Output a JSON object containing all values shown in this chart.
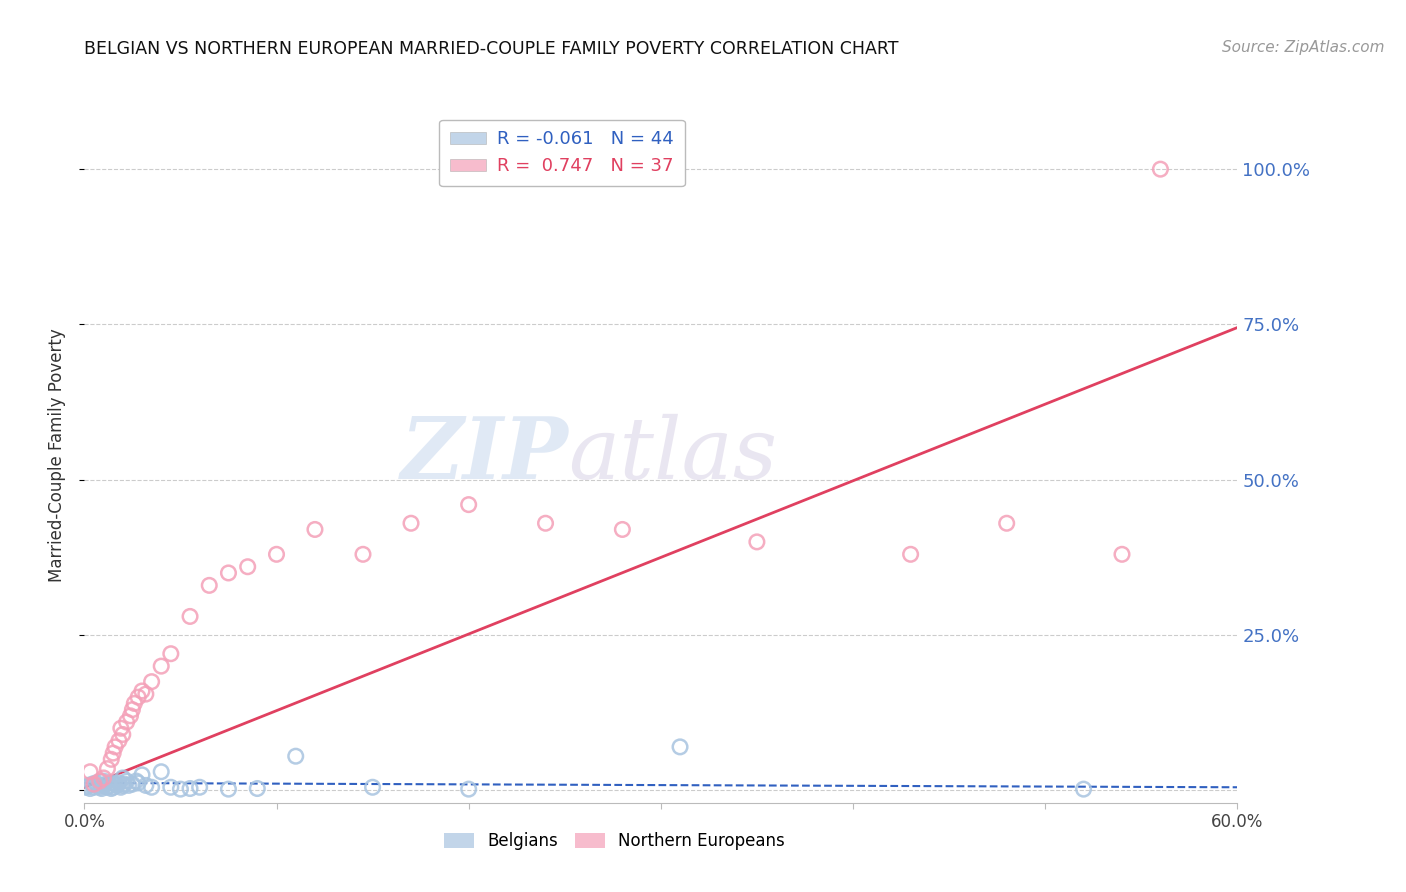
{
  "title": "BELGIAN VS NORTHERN EUROPEAN MARRIED-COUPLE FAMILY POVERTY CORRELATION CHART",
  "source": "Source: ZipAtlas.com",
  "ylabel": "Married-Couple Family Poverty",
  "xlim": [
    0.0,
    0.6
  ],
  "ylim": [
    -0.02,
    1.1
  ],
  "yticks": [
    0.0,
    0.25,
    0.5,
    0.75,
    1.0
  ],
  "ytick_labels": [
    "",
    "25.0%",
    "50.0%",
    "75.0%",
    "100.0%"
  ],
  "xticks": [
    0.0,
    0.1,
    0.2,
    0.3,
    0.4,
    0.5,
    0.6
  ],
  "xtick_labels": [
    "0.0%",
    "",
    "",
    "",
    "",
    "",
    "60.0%"
  ],
  "belgian_color": "#a8c4e0",
  "northern_color": "#f4a0b8",
  "trendline_belgian_color": "#3060c0",
  "trendline_northern_color": "#e04060",
  "belgian_R": -0.061,
  "belgian_N": 44,
  "northern_R": 0.747,
  "northern_N": 37,
  "background_color": "#ffffff",
  "grid_color": "#cccccc",
  "watermark_zip": "ZIP",
  "watermark_atlas": "atlas",
  "ytick_color": "#4472C4",
  "belgians_x": [
    0.001,
    0.002,
    0.003,
    0.004,
    0.005,
    0.006,
    0.007,
    0.008,
    0.009,
    0.01,
    0.01,
    0.011,
    0.012,
    0.013,
    0.014,
    0.015,
    0.015,
    0.016,
    0.017,
    0.018,
    0.019,
    0.02,
    0.02,
    0.021,
    0.022,
    0.023,
    0.025,
    0.027,
    0.028,
    0.03,
    0.032,
    0.035,
    0.04,
    0.045,
    0.05,
    0.055,
    0.06,
    0.075,
    0.09,
    0.11,
    0.15,
    0.2,
    0.31,
    0.52
  ],
  "belgians_y": [
    0.005,
    0.008,
    0.003,
    0.01,
    0.005,
    0.012,
    0.007,
    0.005,
    0.003,
    0.008,
    0.015,
    0.01,
    0.005,
    0.008,
    0.003,
    0.005,
    0.012,
    0.01,
    0.008,
    0.012,
    0.005,
    0.008,
    0.02,
    0.01,
    0.015,
    0.008,
    0.01,
    0.015,
    0.012,
    0.025,
    0.008,
    0.005,
    0.03,
    0.005,
    0.002,
    0.003,
    0.005,
    0.002,
    0.003,
    0.055,
    0.005,
    0.002,
    0.07,
    0.002
  ],
  "northern_x": [
    0.003,
    0.005,
    0.008,
    0.01,
    0.012,
    0.014,
    0.015,
    0.016,
    0.018,
    0.019,
    0.02,
    0.022,
    0.024,
    0.025,
    0.026,
    0.028,
    0.03,
    0.032,
    0.035,
    0.04,
    0.045,
    0.055,
    0.065,
    0.075,
    0.085,
    0.1,
    0.12,
    0.145,
    0.17,
    0.2,
    0.24,
    0.28,
    0.35,
    0.43,
    0.48,
    0.54,
    0.56
  ],
  "northern_y": [
    0.03,
    0.01,
    0.015,
    0.02,
    0.035,
    0.05,
    0.06,
    0.07,
    0.08,
    0.1,
    0.09,
    0.11,
    0.12,
    0.13,
    0.14,
    0.15,
    0.16,
    0.155,
    0.175,
    0.2,
    0.22,
    0.28,
    0.33,
    0.35,
    0.36,
    0.38,
    0.42,
    0.38,
    0.43,
    0.46,
    0.43,
    0.42,
    0.4,
    0.38,
    0.43,
    0.38,
    1.0
  ],
  "ne_trendline_x0": 0.0,
  "ne_trendline_y0": 0.005,
  "ne_trendline_x1": 0.6,
  "ne_trendline_y1": 0.745,
  "b_trendline_x0": 0.0,
  "b_trendline_y0": 0.012,
  "b_trendline_x1": 0.6,
  "b_trendline_y1": 0.005
}
